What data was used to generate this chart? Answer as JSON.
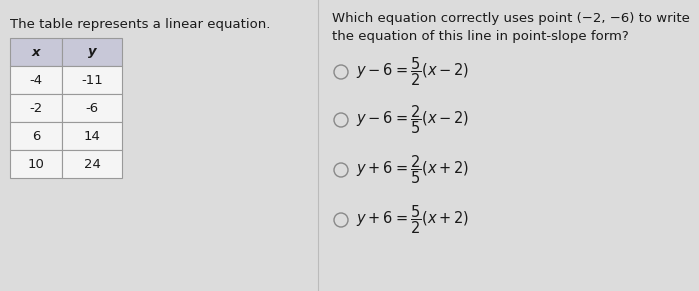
{
  "bg_color": "#dcdcdc",
  "left_title": "The table represents a linear equation.",
  "table_headers": [
    "x",
    "y"
  ],
  "table_data": [
    [
      -4,
      -11
    ],
    [
      -2,
      -6
    ],
    [
      6,
      14
    ],
    [
      10,
      24
    ]
  ],
  "question_line1": "Which equation correctly uses point (−2, −6) to write",
  "question_line2": "the equation of this line in point-slope form?",
  "options": [
    "$y - 6 = \\dfrac{5}{2}(x - 2)$",
    "$y - 6 = \\dfrac{2}{5}(x - 2)$",
    "$y + 6 = \\dfrac{2}{5}(x + 2)$",
    "$y + 6 = \\dfrac{5}{2}(x + 2)$"
  ],
  "text_color": "#1a1a1a",
  "header_bg": "#c8c8d8",
  "table_bg": "#f5f5f5",
  "table_border": "#999999",
  "font_size_title": 9.5,
  "font_size_table": 9.5,
  "font_size_question": 9.5,
  "font_size_options": 10.5,
  "circle_color": "#888888",
  "divider_color": "#bbbbbb"
}
